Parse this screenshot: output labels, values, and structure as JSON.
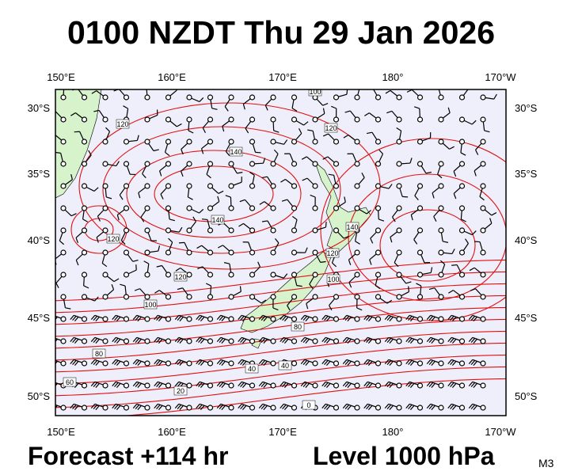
{
  "header": {
    "title": "0100 NZDT Thu 29 Jan 2026"
  },
  "map": {
    "longitude_labels": [
      "150°E",
      "160°E",
      "170°E",
      "180°",
      "170°W"
    ],
    "latitude_labels": [
      "30°S",
      "35°S",
      "40°S",
      "45°S",
      "50°S"
    ],
    "contour_labels": [
      100,
      120,
      120,
      140,
      140,
      120,
      140,
      120,
      100,
      120,
      100,
      80,
      80,
      40,
      60,
      20,
      0,
      40
    ]
  },
  "footer": {
    "forecast": "Forecast +114 hr",
    "level": "Level 1000 hPa",
    "model": "M3"
  }
}
